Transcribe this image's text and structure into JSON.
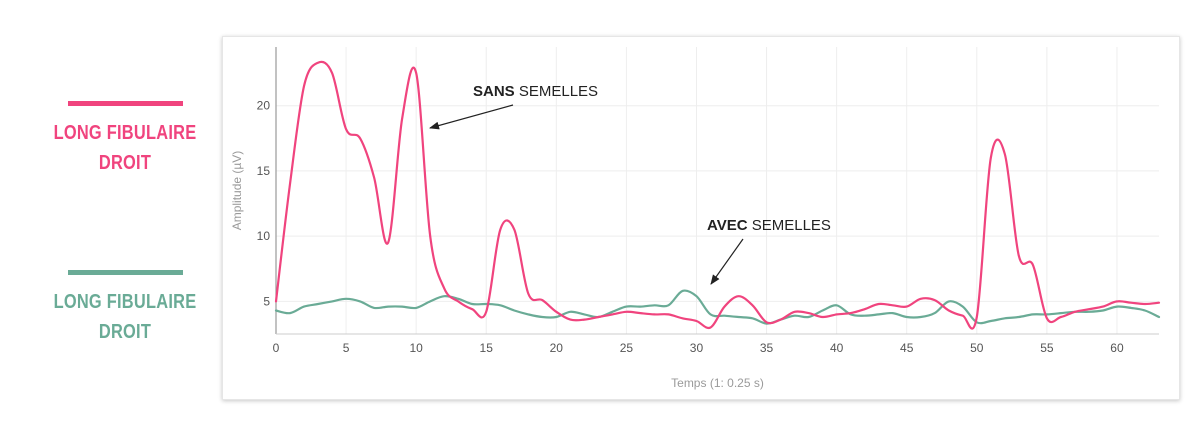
{
  "legend": [
    {
      "label_line1": "LONG FIBULAIRE",
      "label_line2": "DROIT",
      "color": "#f0447e"
    },
    {
      "label_line1": "LONG FIBULAIRE",
      "label_line2": "DROIT",
      "color": "#6aab96"
    }
  ],
  "chart_data": {
    "type": "line",
    "xlabel": "Temps (1: 0.25 s)",
    "ylabel": "Amplitude (µV)",
    "xlim": [
      0,
      63
    ],
    "ylim": [
      2.5,
      24.5
    ],
    "xticks": [
      0,
      5,
      10,
      15,
      20,
      25,
      30,
      35,
      40,
      45,
      50,
      55,
      60
    ],
    "yticks": [
      5,
      10,
      15,
      20
    ],
    "grid": true,
    "series": [
      {
        "color": "#f0447e",
        "x": [
          0,
          1,
          2,
          3,
          4,
          5,
          6,
          7,
          8,
          9,
          10,
          11,
          12,
          13,
          14,
          15,
          16,
          17,
          18,
          19,
          20,
          21,
          22,
          23,
          24,
          25,
          26,
          27,
          28,
          29,
          30,
          31,
          32,
          33,
          34,
          35,
          36,
          37,
          38,
          39,
          40,
          41,
          42,
          43,
          44,
          45,
          46,
          47,
          48,
          49,
          50,
          51,
          52,
          53,
          54,
          55,
          56,
          57,
          58,
          59,
          60,
          61,
          62,
          63
        ],
        "y": [
          5.0,
          14.0,
          21.5,
          23.3,
          22.5,
          18.2,
          17.5,
          14.5,
          9.5,
          19.0,
          22.5,
          10.0,
          6.0,
          5.0,
          4.4,
          4.2,
          10.5,
          10.5,
          5.6,
          5.1,
          4.2,
          3.6,
          3.6,
          3.8,
          4.0,
          4.2,
          4.1,
          4.0,
          4.0,
          3.7,
          3.5,
          3.0,
          4.6,
          5.4,
          4.7,
          3.4,
          3.6,
          4.2,
          4.1,
          3.8,
          4.0,
          4.1,
          4.4,
          4.8,
          4.7,
          4.6,
          5.2,
          5.1,
          4.3,
          3.9,
          3.8,
          16.0,
          16.3,
          8.5,
          7.8,
          3.7,
          3.8,
          4.2,
          4.4,
          4.6,
          5.0,
          4.9,
          4.8,
          4.9
        ]
      },
      {
        "color": "#6aab96",
        "x": [
          0,
          1,
          2,
          3,
          4,
          5,
          6,
          7,
          8,
          9,
          10,
          11,
          12,
          13,
          14,
          15,
          16,
          17,
          18,
          19,
          20,
          21,
          22,
          23,
          24,
          25,
          26,
          27,
          28,
          29,
          30,
          31,
          32,
          33,
          34,
          35,
          36,
          37,
          38,
          39,
          40,
          41,
          42,
          43,
          44,
          45,
          46,
          47,
          48,
          49,
          50,
          51,
          52,
          53,
          54,
          55,
          56,
          57,
          58,
          59,
          60,
          61,
          62,
          63
        ],
        "y": [
          4.3,
          4.1,
          4.6,
          4.8,
          5.0,
          5.2,
          5.0,
          4.5,
          4.6,
          4.6,
          4.5,
          5.0,
          5.4,
          5.2,
          4.8,
          4.8,
          4.7,
          4.3,
          4.0,
          3.8,
          3.8,
          4.2,
          4.0,
          3.8,
          4.2,
          4.6,
          4.6,
          4.7,
          4.7,
          5.8,
          5.4,
          4.0,
          3.9,
          3.8,
          3.7,
          3.3,
          3.6,
          3.9,
          3.8,
          4.3,
          4.7,
          4.0,
          3.9,
          4.0,
          4.1,
          3.8,
          3.8,
          4.1,
          5.0,
          4.6,
          3.4,
          3.5,
          3.7,
          3.8,
          4.0,
          4.0,
          4.1,
          4.2,
          4.2,
          4.3,
          4.6,
          4.5,
          4.3,
          3.8
        ]
      }
    ],
    "annotations": [
      {
        "bold": "SANS",
        "text": " SEMELLES",
        "x": 11.2,
        "y": 18.5,
        "color": "#222222"
      },
      {
        "bold": "AVEC",
        "text": " SEMELLES",
        "x": 31.0,
        "y": 5.4,
        "color": "#222222"
      }
    ]
  }
}
